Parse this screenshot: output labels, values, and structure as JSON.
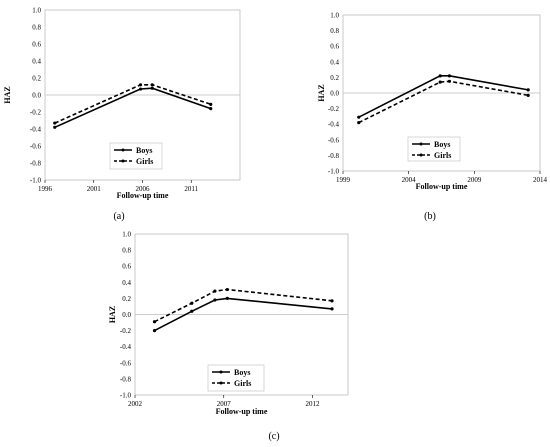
{
  "chart_data": [
    {
      "type": "line",
      "panel_label": "(a)",
      "xlabel": "Follow-up time",
      "ylabel": "HAZ",
      "xlim": [
        1996,
        2016
      ],
      "ylim": [
        -1.0,
        1.0
      ],
      "x_ticks": [
        "1996",
        "2001",
        "2006",
        "2011"
      ],
      "y_ticks": [
        "1.0",
        "0.8",
        "0.6",
        "0.4",
        "0.2",
        "0.0",
        "-0.2",
        "-0.4",
        "-0.6",
        "-0.8",
        "-1.0"
      ],
      "grid": false,
      "legend_position": "bottom-center",
      "series": [
        {
          "name": "Boys",
          "style": "solid",
          "x": [
            1997,
            2005.8,
            2007,
            2013
          ],
          "y": [
            -0.38,
            0.07,
            0.08,
            -0.16
          ]
        },
        {
          "name": "Girls",
          "style": "dashed",
          "x": [
            1997,
            2005.8,
            2007,
            2013
          ],
          "y": [
            -0.33,
            0.12,
            0.12,
            -0.11
          ]
        }
      ]
    },
    {
      "type": "line",
      "panel_label": "(b)",
      "xlabel": "Follow-up time",
      "ylabel": "HAZ",
      "xlim": [
        1999,
        2014
      ],
      "ylim": [
        -1.0,
        1.0
      ],
      "x_ticks": [
        "1999",
        "2004",
        "2009",
        "2014"
      ],
      "y_ticks": [
        "1.0",
        "0.8",
        "0.6",
        "0.4",
        "0.2",
        "0.0",
        "-0.2",
        "-0.4",
        "-0.6",
        "-0.8",
        "-1.0"
      ],
      "grid": false,
      "legend_position": "bottom-center",
      "series": [
        {
          "name": "Boys",
          "style": "solid",
          "x": [
            2000.2,
            2006.4,
            2007.1,
            2013.1
          ],
          "y": [
            -0.31,
            0.22,
            0.22,
            0.04
          ]
        },
        {
          "name": "Girls",
          "style": "dashed",
          "x": [
            2000.2,
            2006.4,
            2007.1,
            2013.1
          ],
          "y": [
            -0.38,
            0.14,
            0.15,
            -0.03
          ]
        }
      ]
    },
    {
      "type": "line",
      "panel_label": "(c)",
      "xlabel": "Follow-up time",
      "ylabel": "HAZ",
      "xlim": [
        2002,
        2014
      ],
      "ylim": [
        -1.0,
        1.0
      ],
      "x_ticks": [
        "2002",
        "2007",
        "2012"
      ],
      "y_ticks": [
        "1.0",
        "0.8",
        "0.6",
        "0.4",
        "0.2",
        "0.0",
        "-0.2",
        "-0.4",
        "-0.6",
        "-0.8",
        "-1.0"
      ],
      "grid": false,
      "legend_position": "bottom-center",
      "series": [
        {
          "name": "Boys",
          "style": "solid",
          "x": [
            2003.1,
            2005.2,
            2006.5,
            2007.2,
            2013.1
          ],
          "y": [
            -0.2,
            0.04,
            0.18,
            0.2,
            0.07
          ]
        },
        {
          "name": "Girls",
          "style": "dashed",
          "x": [
            2003.1,
            2005.2,
            2006.5,
            2007.2,
            2013.1
          ],
          "y": [
            -0.09,
            0.14,
            0.29,
            0.31,
            0.17
          ]
        }
      ]
    }
  ]
}
